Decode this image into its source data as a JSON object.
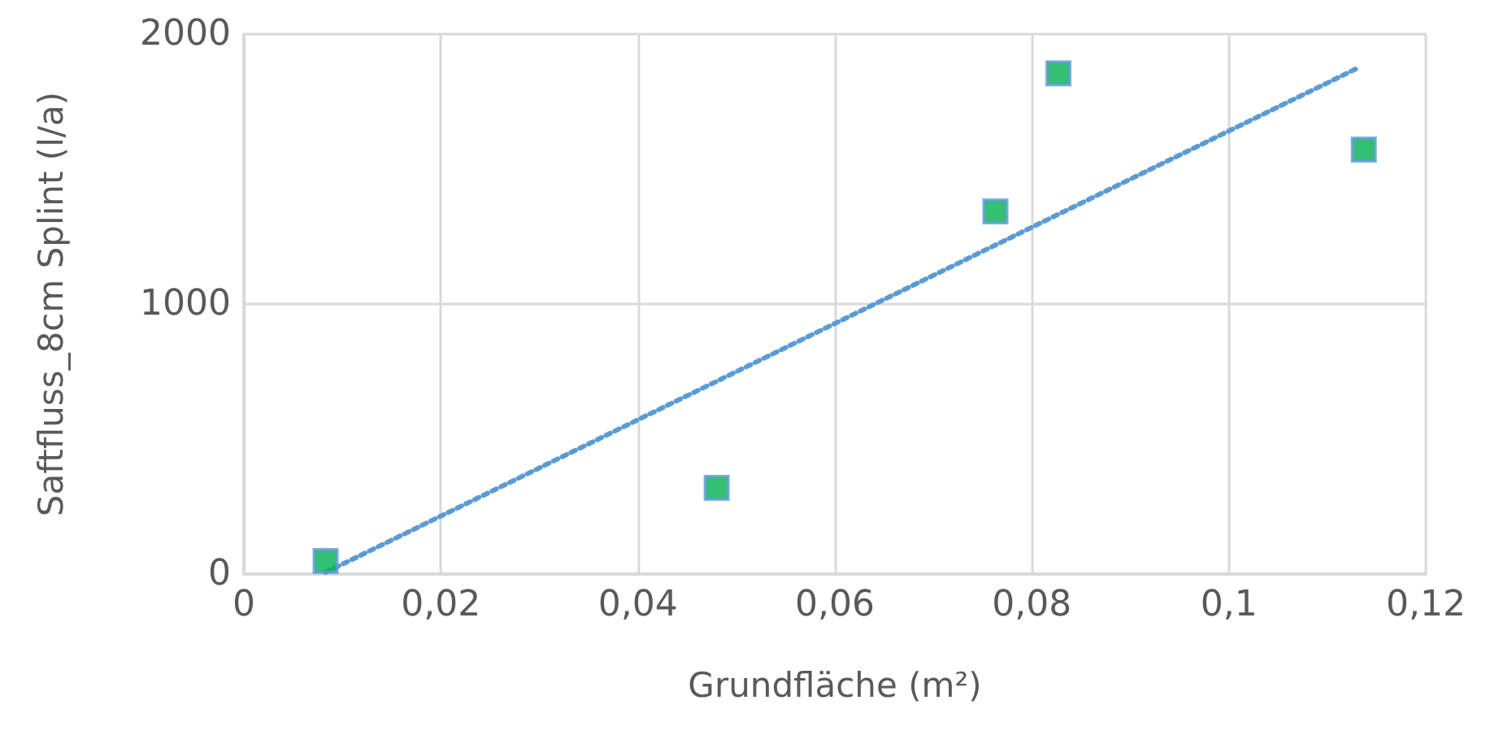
{
  "chart_data": {
    "type": "scatter",
    "xlabel": "Grundfläche (m²)",
    "ylabel": "Saftfluss_8cm Splint (l/a)",
    "xlim": [
      0,
      0.12
    ],
    "xticks": [
      0,
      {
        "value": 0.02,
        "label": "0,02"
      },
      {
        "value": 0.04,
        "label": "0,04"
      },
      {
        "value": 0.06,
        "label": "0,06"
      },
      {
        "value": 0.08,
        "label": "0,08"
      },
      {
        "value": 0.1,
        "label": "0,1"
      },
      {
        "value": 0.12,
        "label": "0,12"
      }
    ],
    "ylim": [
      0,
      2000
    ],
    "yticks": [
      0,
      1000,
      2000
    ],
    "grid": true,
    "series": [
      {
        "color": "#00b050",
        "marker": "square",
        "x": [
          0.0083,
          0.048,
          0.0763,
          0.0827,
          0.1137
        ],
        "values": [
          48,
          319,
          1343,
          1855,
          1572
        ]
      },
      {
        "type": "line",
        "color": "#5b9bd5",
        "marker": "none",
        "line_style": "dotted",
        "x": [
          0.0083,
          0.113
        ],
        "values": [
          6,
          1873
        ]
      }
    ]
  }
}
